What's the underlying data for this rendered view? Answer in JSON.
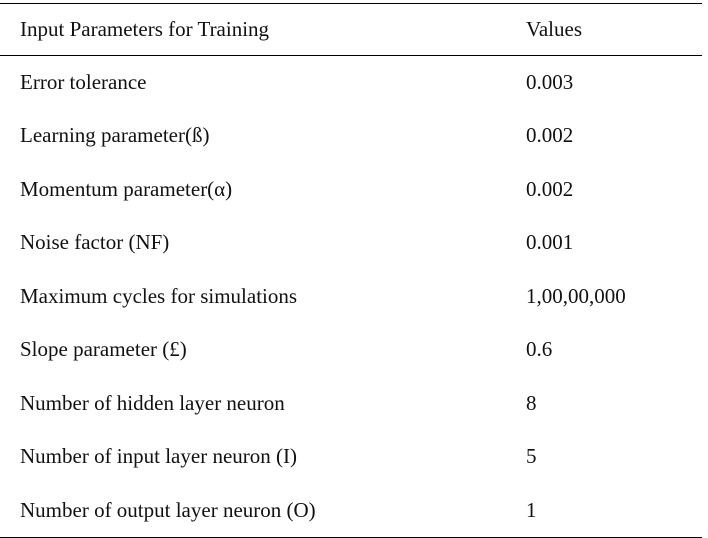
{
  "table": {
    "headers": {
      "parameter": "Input Parameters for Training",
      "value": "Values"
    },
    "rows": [
      {
        "parameter": "Error tolerance",
        "value": "0.003"
      },
      {
        "parameter": "Learning parameter(ß)",
        "value": "0.002"
      },
      {
        "parameter": "Momentum parameter(α)",
        "value": "0.002"
      },
      {
        "parameter": "Noise factor (NF)",
        "value": "0.001"
      },
      {
        "parameter": "Maximum cycles for simulations",
        "value": "1,00,00,000"
      },
      {
        "parameter": "Slope parameter (£)",
        "value": "0.6"
      },
      {
        "parameter": "Number of hidden layer neuron",
        "value": "8"
      },
      {
        "parameter": "Number of input layer neuron (I)",
        "value": "5"
      },
      {
        "parameter": "Number of output layer neuron (O)",
        "value": "1"
      }
    ]
  }
}
